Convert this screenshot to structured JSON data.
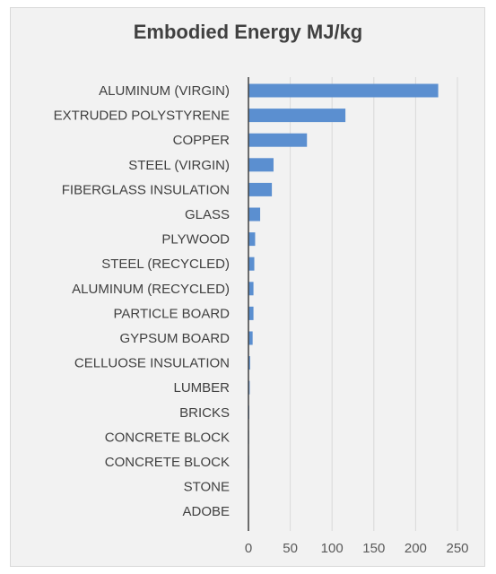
{
  "chart_data": {
    "type": "bar",
    "orientation": "horizontal",
    "title": "Embodied Energy MJ/kg",
    "xlabel": "",
    "ylabel": "",
    "categories": [
      "ALUMINUM (VIRGIN)",
      "EXTRUDED POLYSTYRENE",
      "COPPER",
      "STEEL (VIRGIN)",
      "FIBERGLASS INSULATION",
      "GLASS",
      "PLYWOOD",
      "STEEL (RECYCLED)",
      "ALUMINUM (RECYCLED)",
      "PARTICLE BOARD",
      "GYPSUM BOARD",
      "CELLUOSE INSULATION",
      "LUMBER",
      "BRICKS",
      "CONCRETE BLOCK",
      "CONCRETE BLOCK",
      "STONE",
      "ADOBE"
    ],
    "values": [
      227,
      116,
      70,
      30,
      28,
      14,
      8,
      7,
      6,
      6,
      5,
      2,
      1.5,
      1,
      0.7,
      0.7,
      0.5,
      0.3
    ],
    "xlim": [
      0,
      250
    ],
    "xticks": [
      "0",
      "50",
      "100",
      "150",
      "200",
      "250"
    ],
    "xtick_values": [
      0,
      50,
      100,
      150,
      200,
      250
    ],
    "grid": "vertical",
    "legend": "none",
    "bar_color": "#5b8fd0",
    "axis_color": "#404040",
    "grid_color": "#d9d9d9",
    "background_color": "#f2f2f2"
  }
}
